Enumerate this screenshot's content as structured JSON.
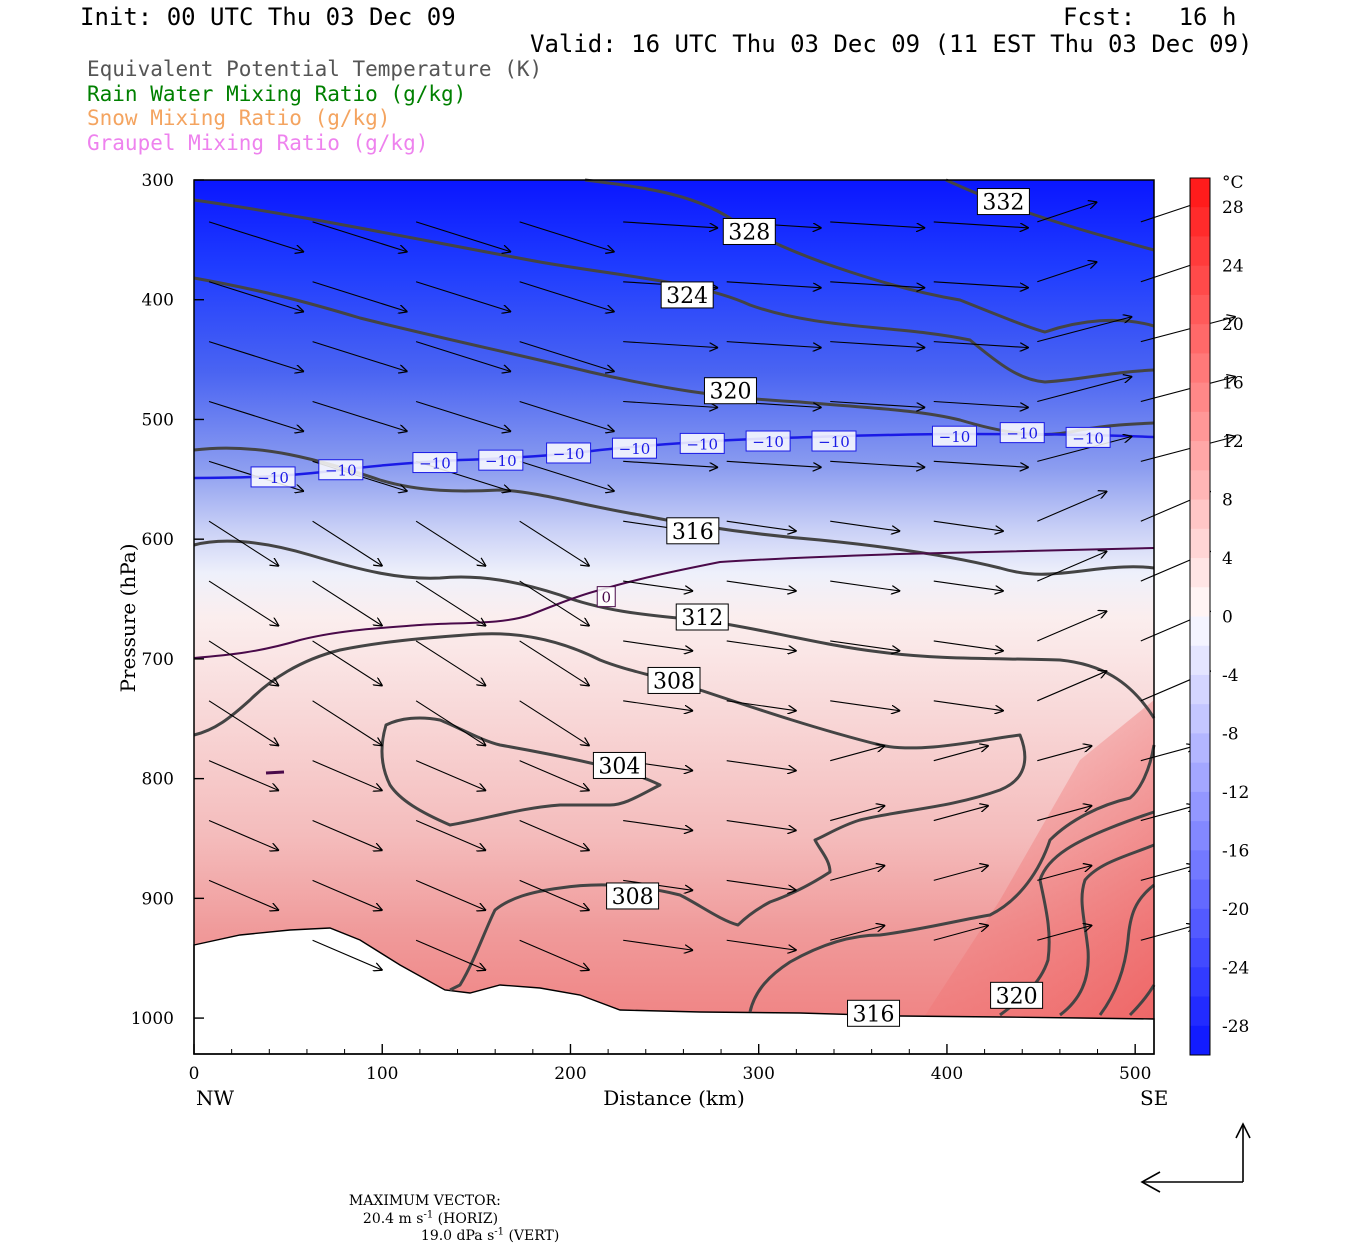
{
  "header": {
    "init": "Init: 00 UTC Thu 03 Dec 09",
    "fcst": "Fcst:   16 h",
    "valid": "Valid: 16 UTC Thu 03 Dec 09 (11 EST Thu 03 Dec 09)",
    "fields": [
      {
        "text": "Equivalent Potential Temperature (K)",
        "color": "#555555"
      },
      {
        "text": "Rain Water Mixing Ratio (g/kg)",
        "color": "#008000"
      },
      {
        "text": "Snow Mixing Ratio (g/kg)",
        "color": "#f4a460"
      },
      {
        "text": "Graupel Mixing Ratio (g/kg)",
        "color": "#ee82ee"
      }
    ]
  },
  "chart_data": {
    "type": "cross-section",
    "xlabel": "Distance (km)",
    "ylabel": "Pressure (hPa)",
    "xlim": [
      0,
      510
    ],
    "ylim": [
      1030,
      300
    ],
    "y_scale": "linear, inverted",
    "x_ticks": [
      "0",
      "100",
      "200",
      "300",
      "400",
      "500"
    ],
    "y_ticks": [
      "300",
      "400",
      "500",
      "600",
      "700",
      "800",
      "900",
      "1000"
    ],
    "x_end_labels": {
      "left": "NW",
      "right": "SE"
    },
    "temperature_shading": {
      "unit": "°C",
      "colorbar_ticks": [
        "28",
        "24",
        "20",
        "16",
        "12",
        "8",
        "4",
        "0",
        "-4",
        "-8",
        "-12",
        "-16",
        "-20",
        "-24",
        "-28"
      ],
      "colors": {
        "cold": "#0000ff",
        "zero": "#ffffff",
        "warm": "#ff2020"
      }
    },
    "theta_e_contour_labels": [
      {
        "text": "332",
        "x": 430,
        "p": 318
      },
      {
        "text": "328",
        "x": 295,
        "p": 343
      },
      {
        "text": "324",
        "x": 262,
        "p": 396
      },
      {
        "text": "320",
        "x": 285,
        "p": 476
      },
      {
        "text": "316",
        "x": 265,
        "p": 593
      },
      {
        "text": "312",
        "x": 270,
        "p": 665
      },
      {
        "text": "308",
        "x": 255,
        "p": 718
      },
      {
        "text": "304",
        "x": 226,
        "p": 789
      },
      {
        "text": "308",
        "x": 233,
        "p": 898
      },
      {
        "text": "316",
        "x": 361,
        "p": 996
      },
      {
        "text": "320",
        "x": 437,
        "p": 981
      }
    ],
    "isotherm_labels": [
      {
        "text": "−10",
        "x": 42,
        "p": 548
      },
      {
        "text": "−10",
        "x": 78,
        "p": 542
      },
      {
        "text": "−10",
        "x": 128,
        "p": 536
      },
      {
        "text": "−10",
        "x": 163,
        "p": 534
      },
      {
        "text": "−10",
        "x": 199,
        "p": 528
      },
      {
        "text": "−10",
        "x": 234,
        "p": 524
      },
      {
        "text": "−10",
        "x": 270,
        "p": 520
      },
      {
        "text": "−10",
        "x": 305,
        "p": 518
      },
      {
        "text": "−10",
        "x": 340,
        "p": 518
      },
      {
        "text": "−10",
        "x": 404,
        "p": 514
      },
      {
        "text": "−10",
        "x": 440,
        "p": 511
      },
      {
        "text": "−10",
        "x": 475,
        "p": 515
      },
      {
        "text": "0",
        "x": 219,
        "p": 648
      }
    ]
  },
  "footer": {
    "max_vector_label": "MAXIMUM VECTOR:",
    "horiz": "20.4 m s",
    "horiz_exp": "-1",
    "horiz_tag": " (HORIZ)",
    "vert": "19.0 dPa s",
    "vert_exp": "-1",
    "vert_tag": " (VERT)"
  }
}
